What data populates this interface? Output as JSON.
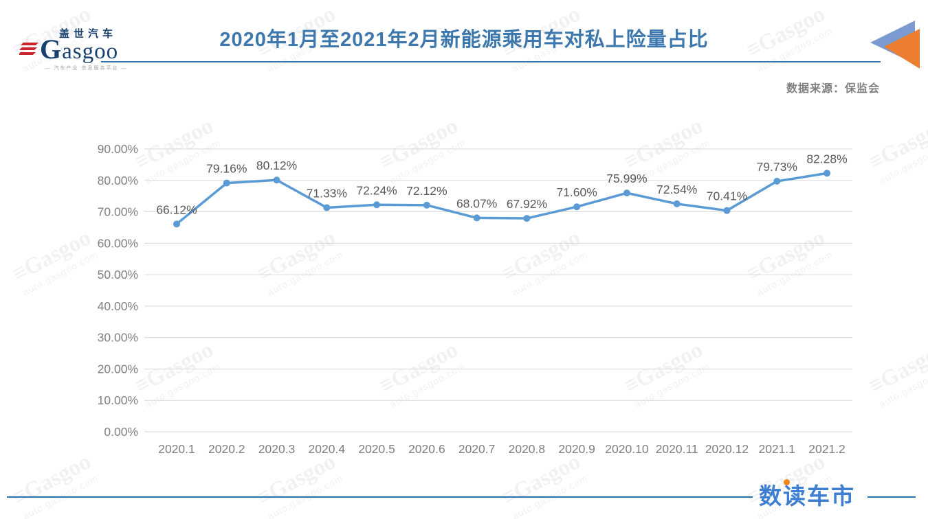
{
  "header": {
    "logo": {
      "top_text": "盖世汽车",
      "brand_initial": "G",
      "brand_rest": "asgoo",
      "tagline": "— 汽车产业 信息服务平台 —"
    },
    "title": "2020年1月至2021年2月新能源乘用车对私上险量占比",
    "source": "数据来源：保监会"
  },
  "watermark": {
    "brand": "Gasgoo",
    "url": "auto.gasgoo.com"
  },
  "footer": {
    "brand": "数读车市"
  },
  "colors": {
    "title_blue": "#3c78ad",
    "header_line": "#2e75b6",
    "footer_line": "#2473b5",
    "footer_brand_blue": "#3d7fd2",
    "footer_dot_orange": "#f08519",
    "line": "#5B9BD5",
    "grid": "#d9d9d9",
    "axis_text": "#7f7f7f",
    "label_text": "#595959",
    "triangle_blue": "#7a9ad0",
    "triangle_orange": "#ED7D31",
    "logo_navy": "#17406e",
    "logo_red": "#c9252c"
  },
  "chart_data": {
    "type": "line",
    "title": "2020年1月至2021年2月新能源乘用车对私上险量占比",
    "categories": [
      "2020.1",
      "2020.2",
      "2020.3",
      "2020.4",
      "2020.5",
      "2020.6",
      "2020.7",
      "2020.8",
      "2020.9",
      "2020.10",
      "2020.11",
      "2020.12",
      "2021.1",
      "2021.2"
    ],
    "values": [
      66.12,
      79.16,
      80.12,
      71.33,
      72.24,
      72.12,
      68.07,
      67.92,
      71.6,
      75.99,
      72.54,
      70.41,
      79.73,
      82.28
    ],
    "point_labels": [
      "66.12%",
      "79.16%",
      "80.12%",
      "71.33%",
      "72.24%",
      "72.12%",
      "68.07%",
      "67.92%",
      "71.60%",
      "75.99%",
      "72.54%",
      "70.41%",
      "79.73%",
      "82.28%"
    ],
    "y_ticks": [
      "0.00%",
      "10.00%",
      "20.00%",
      "30.00%",
      "40.00%",
      "50.00%",
      "60.00%",
      "70.00%",
      "80.00%",
      "90.00%"
    ],
    "ylim": [
      0,
      90
    ],
    "xlabel": "",
    "ylabel": "",
    "grid": true,
    "legend": false,
    "marker": "circle"
  }
}
